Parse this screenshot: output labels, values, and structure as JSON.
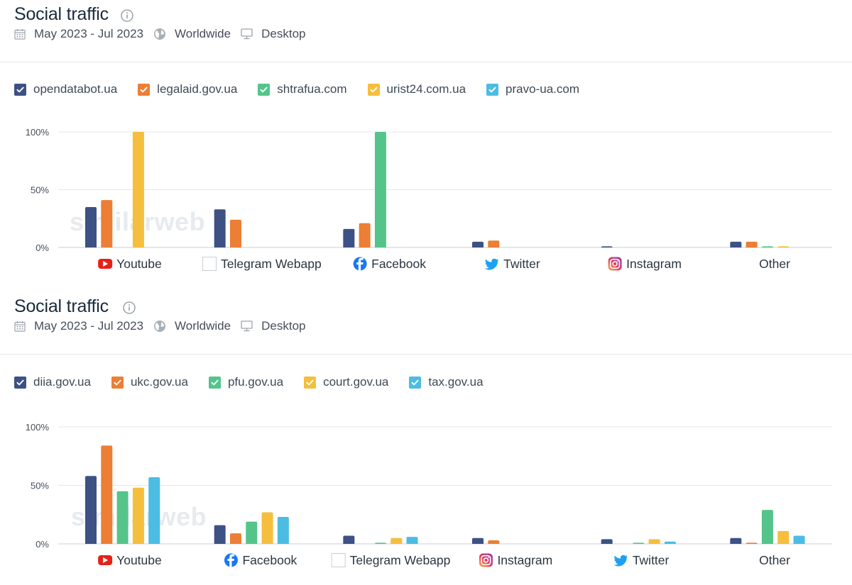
{
  "panels": [
    {
      "title": "Social traffic",
      "meta": {
        "date_range": "May 2023 - Jul 2023",
        "region": "Worldwide",
        "device": "Desktop"
      },
      "watermark": "similarweb"
    },
    {
      "title": "Social traffic",
      "meta": {
        "date_range": "May 2023 - Jul 2023",
        "region": "Worldwide",
        "device": "Desktop"
      },
      "watermark": "similarweb"
    }
  ],
  "colors": {
    "series": [
      "#3e5184",
      "#ec7e35",
      "#55c48a",
      "#f5be3c",
      "#4cbce3"
    ],
    "grid": "#e4e7eb",
    "axis_text": "#454f5b"
  },
  "category_icons": {
    "Youtube": "youtube-icon",
    "Telegram Webapp": "telegram-webapp-icon",
    "Facebook": "facebook-icon",
    "Twitter": "twitter-icon",
    "Instagram": "instagram-icon",
    "Other": ""
  },
  "chart_data": [
    {
      "type": "bar",
      "title": "Social traffic",
      "categories": [
        "Youtube",
        "Telegram Webapp",
        "Facebook",
        "Twitter",
        "Instagram",
        "Other"
      ],
      "series": [
        {
          "name": "opendatabot.ua",
          "values": [
            35,
            33,
            16,
            5,
            1,
            5
          ]
        },
        {
          "name": "legalaid.gov.ua",
          "values": [
            41,
            24,
            21,
            6,
            0,
            5
          ]
        },
        {
          "name": "shtrafua.com",
          "values": [
            0,
            0,
            100,
            0,
            0,
            1
          ]
        },
        {
          "name": "urist24.com.ua",
          "values": [
            100,
            0,
            0,
            0,
            0,
            1
          ]
        },
        {
          "name": "pravo-ua.com",
          "values": [
            0,
            0,
            0,
            0,
            0,
            0
          ]
        }
      ],
      "y_ticks": [
        "0%",
        "50%",
        "100%"
      ],
      "ylim": [
        0,
        100
      ],
      "grid": true,
      "legend_position": "top-left"
    },
    {
      "type": "bar",
      "title": "Social traffic",
      "categories": [
        "Youtube",
        "Facebook",
        "Telegram Webapp",
        "Instagram",
        "Twitter",
        "Other"
      ],
      "series": [
        {
          "name": "diia.gov.ua",
          "values": [
            58,
            16,
            7,
            5,
            4,
            5
          ]
        },
        {
          "name": "ukc.gov.ua",
          "values": [
            84,
            9,
            0,
            3,
            0,
            1
          ]
        },
        {
          "name": "pfu.gov.ua",
          "values": [
            45,
            19,
            1,
            0,
            1,
            29
          ]
        },
        {
          "name": "court.gov.ua",
          "values": [
            48,
            27,
            5,
            0,
            4,
            11
          ]
        },
        {
          "name": "tax.gov.ua",
          "values": [
            57,
            23,
            6,
            0,
            2,
            7
          ]
        }
      ],
      "y_ticks": [
        "0%",
        "50%",
        "100%"
      ],
      "ylim": [
        0,
        100
      ],
      "grid": true,
      "legend_position": "top-left"
    }
  ]
}
